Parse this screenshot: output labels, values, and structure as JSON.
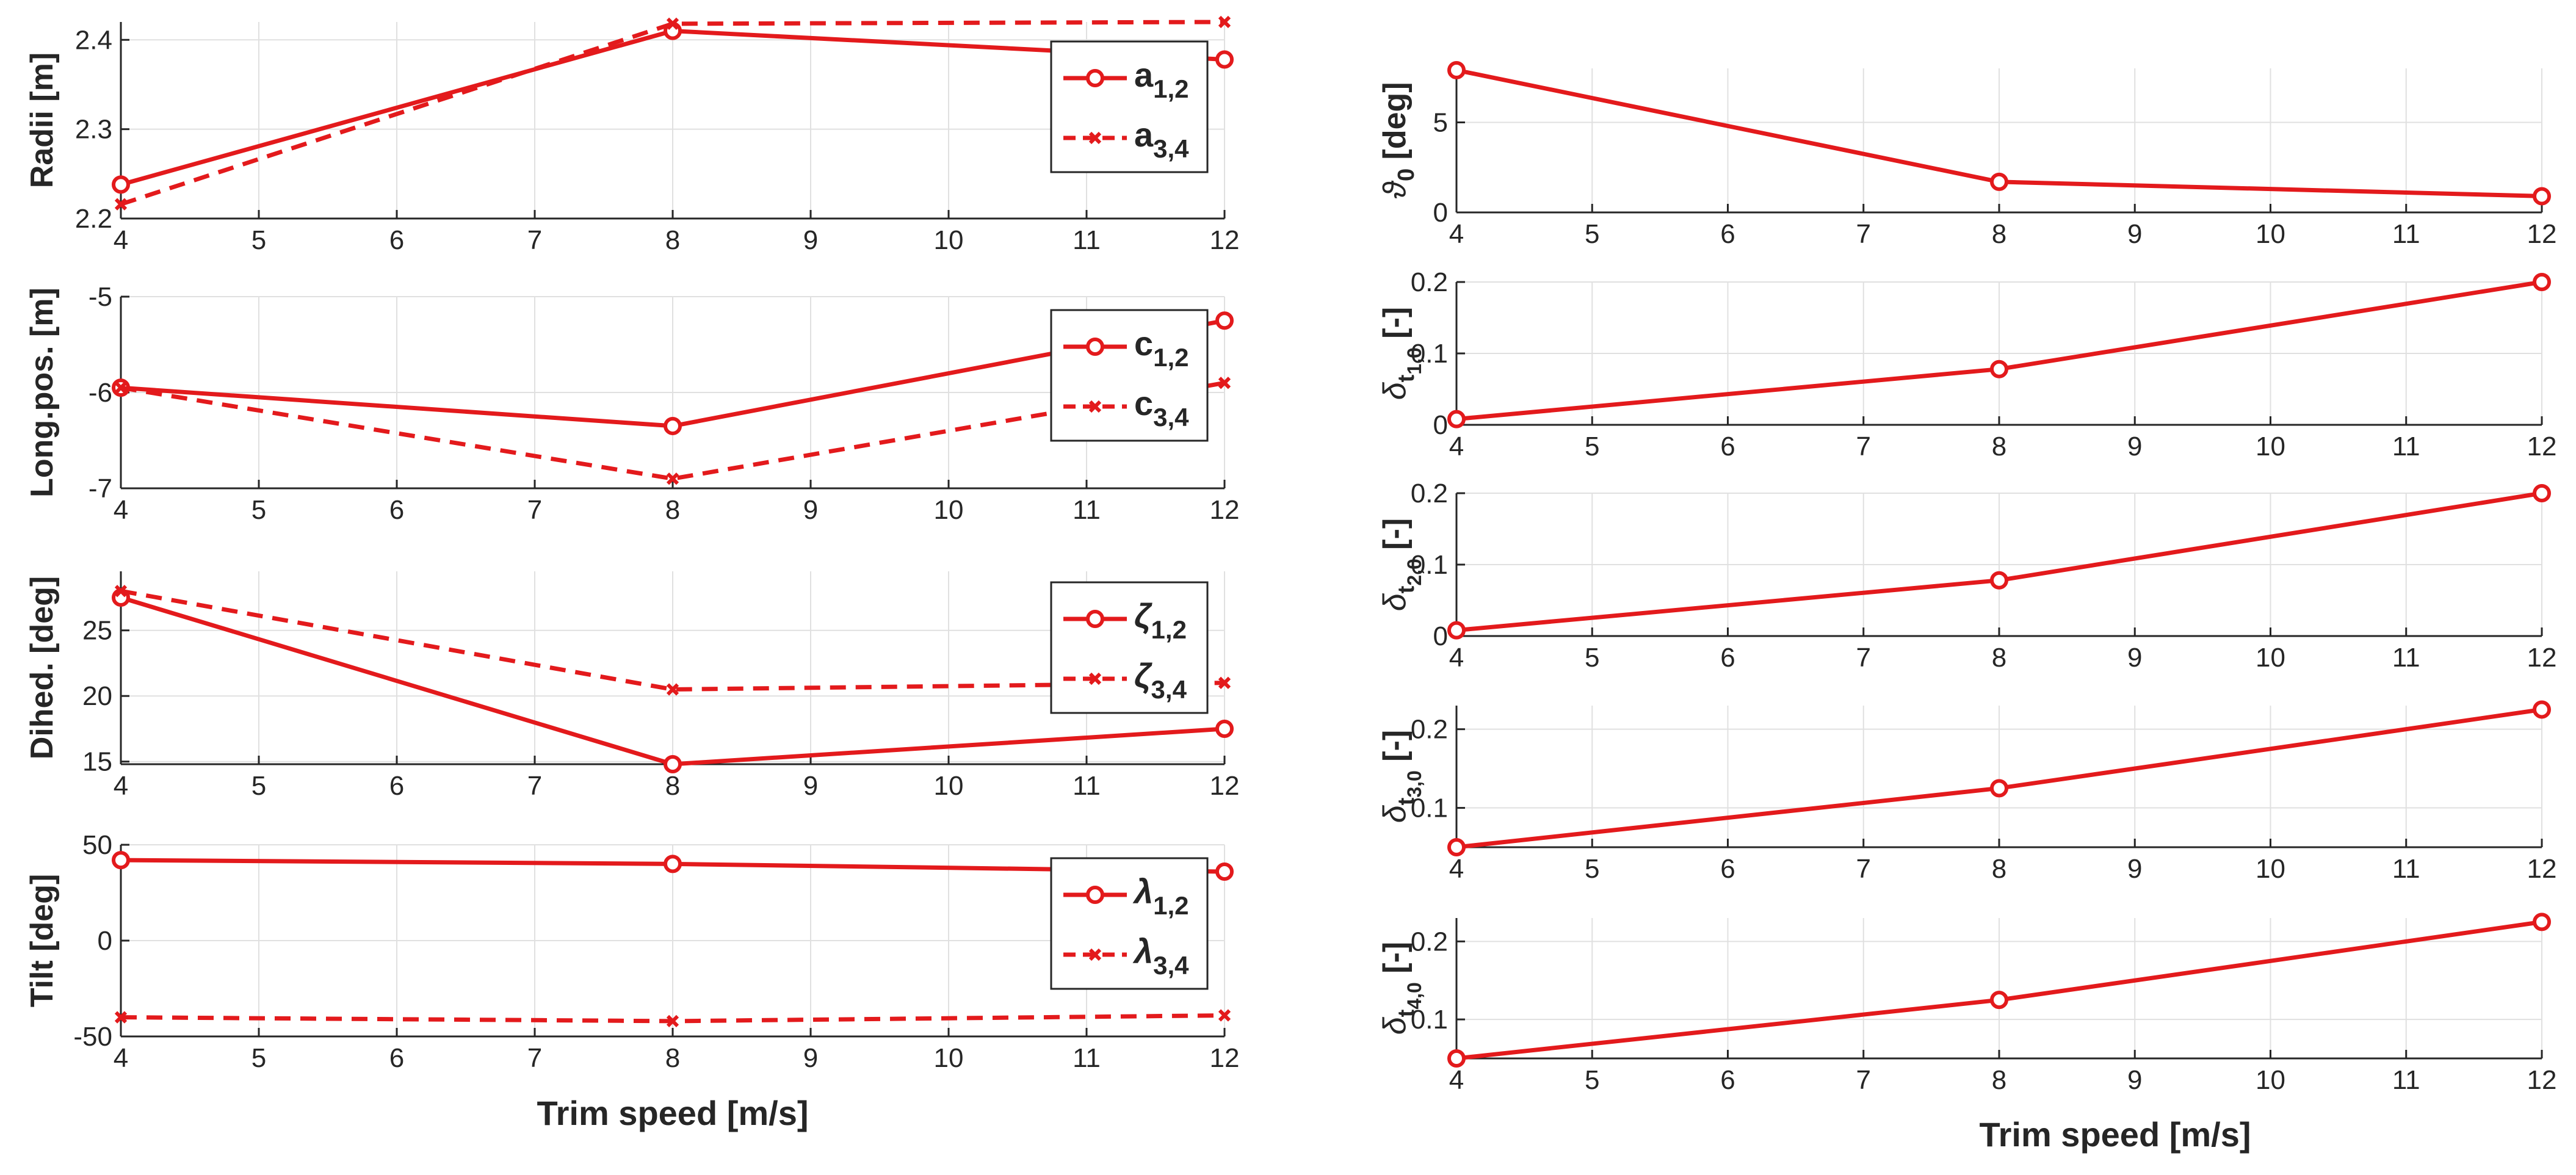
{
  "figure": {
    "left_xlabel": "Trim speed [m/s]",
    "right_xlabel": "Trim speed [m/s]"
  },
  "colors": {
    "series": "#e31a1c",
    "axis": "#262626",
    "grid": "#e0e0e0"
  },
  "chart_data": [
    {
      "id": "radii",
      "type": "line",
      "column": "left",
      "ylabel": "Radii [m]",
      "xlim": [
        4,
        12
      ],
      "ylim": [
        2.2,
        2.42
      ],
      "xticks": [
        4,
        5,
        6,
        7,
        8,
        9,
        10,
        11,
        12
      ],
      "yticks": [
        2.2,
        2.3,
        2.4
      ],
      "ytick_labels": [
        "2.2",
        "2.3",
        "2.4"
      ],
      "x": [
        4,
        8,
        12
      ],
      "series": [
        {
          "name": "a1,2",
          "sym": "a",
          "sub": "1,2",
          "values": [
            2.238,
            2.41,
            2.378
          ],
          "dash": false,
          "marker": "o"
        },
        {
          "name": "a3,4",
          "sym": "a",
          "sub": "3,4",
          "values": [
            2.216,
            2.418,
            2.42
          ],
          "dash": true,
          "marker": "x"
        }
      ]
    },
    {
      "id": "longpos",
      "type": "line",
      "column": "left",
      "ylabel": "Long.pos. [m]",
      "xlim": [
        4,
        12
      ],
      "ylim": [
        -7,
        -5
      ],
      "xticks": [
        4,
        5,
        6,
        7,
        8,
        9,
        10,
        11,
        12
      ],
      "yticks": [
        -7,
        -6,
        -5
      ],
      "ytick_labels": [
        "-7",
        "-6",
        "-5"
      ],
      "x": [
        4,
        8,
        12
      ],
      "series": [
        {
          "name": "c1,2",
          "sym": "c",
          "sub": "1,2",
          "values": [
            -5.95,
            -6.35,
            -5.25
          ],
          "dash": false,
          "marker": "o"
        },
        {
          "name": "c3,4",
          "sym": "c",
          "sub": "3,4",
          "values": [
            -5.95,
            -6.9,
            -5.9
          ],
          "dash": true,
          "marker": "x"
        }
      ]
    },
    {
      "id": "dihed",
      "type": "line",
      "column": "left",
      "ylabel": "Dihed. [deg]",
      "xlim": [
        4,
        12
      ],
      "ylim": [
        14.8,
        29.5
      ],
      "xticks": [
        4,
        5,
        6,
        7,
        8,
        9,
        10,
        11,
        12
      ],
      "yticks": [
        15,
        20,
        25
      ],
      "ytick_labels": [
        "15",
        "20",
        "25"
      ],
      "x": [
        4,
        8,
        12
      ],
      "series": [
        {
          "name": "ζ1,2",
          "sym": "ζ",
          "sub": "1,2",
          "values": [
            27.5,
            14.8,
            17.5
          ],
          "dash": false,
          "marker": "o"
        },
        {
          "name": "ζ3,4",
          "sym": "ζ",
          "sub": "3,4",
          "values": [
            28.0,
            20.5,
            21.0
          ],
          "dash": true,
          "marker": "x"
        }
      ]
    },
    {
      "id": "tilt",
      "type": "line",
      "column": "left",
      "ylabel": "Tilt [deg]",
      "xlim": [
        4,
        12
      ],
      "ylim": [
        -50,
        50
      ],
      "xticks": [
        4,
        5,
        6,
        7,
        8,
        9,
        10,
        11,
        12
      ],
      "yticks": [
        -50,
        0,
        50
      ],
      "ytick_labels": [
        "-50",
        "0",
        "50"
      ],
      "x": [
        4,
        8,
        12
      ],
      "series": [
        {
          "name": "λ1,2",
          "sym": "λ",
          "sub": "1,2",
          "values": [
            42,
            40,
            36
          ],
          "dash": false,
          "marker": "o"
        },
        {
          "name": "λ3,4",
          "sym": "λ",
          "sub": "3,4",
          "values": [
            -40,
            -42,
            -39
          ],
          "dash": true,
          "marker": "x"
        }
      ]
    },
    {
      "id": "theta0",
      "type": "line",
      "column": "right",
      "ylabel": "ϑ0 [deg]",
      "ylabel_sym": "ϑ",
      "ylabel_sub": "0",
      "ylabel_rest": " [deg]",
      "xlim": [
        4,
        12
      ],
      "ylim": [
        0,
        8
      ],
      "xticks": [
        4,
        5,
        6,
        7,
        8,
        9,
        10,
        11,
        12
      ],
      "yticks": [
        0,
        5
      ],
      "ytick_labels": [
        "0",
        "5"
      ],
      "x": [
        4,
        8,
        12
      ],
      "series": [
        {
          "name": "ϑ0",
          "values": [
            7.9,
            1.7,
            0.9
          ],
          "dash": false,
          "marker": "o"
        }
      ]
    },
    {
      "id": "dt10",
      "type": "line",
      "column": "right",
      "ylabel": "δt1,0 [-]",
      "ylabel_sym": "δ",
      "ylabel_sub": "t",
      "ylabel_sub2": "1,0",
      "ylabel_rest": "   [-]",
      "xlim": [
        4,
        12
      ],
      "ylim": [
        0,
        0.2
      ],
      "xticks": [
        4,
        5,
        6,
        7,
        8,
        9,
        10,
        11,
        12
      ],
      "yticks": [
        0,
        0.1,
        0.2
      ],
      "ytick_labels": [
        "0",
        "0.1",
        "0.2"
      ],
      "x": [
        4,
        8,
        12
      ],
      "series": [
        {
          "name": "δt1,0",
          "values": [
            0.008,
            0.078,
            0.2
          ],
          "dash": false,
          "marker": "o"
        }
      ]
    },
    {
      "id": "dt20",
      "type": "line",
      "column": "right",
      "ylabel": "δt2,0 [-]",
      "ylabel_sym": "δ",
      "ylabel_sub": "t",
      "ylabel_sub2": "2,0",
      "ylabel_rest": "   [-]",
      "xlim": [
        4,
        12
      ],
      "ylim": [
        0,
        0.2
      ],
      "xticks": [
        4,
        5,
        6,
        7,
        8,
        9,
        10,
        11,
        12
      ],
      "yticks": [
        0,
        0.1,
        0.2
      ],
      "ytick_labels": [
        "0",
        "0.1",
        "0.2"
      ],
      "x": [
        4,
        8,
        12
      ],
      "series": [
        {
          "name": "δt2,0",
          "values": [
            0.008,
            0.078,
            0.2
          ],
          "dash": false,
          "marker": "o"
        }
      ]
    },
    {
      "id": "dt30",
      "type": "line",
      "column": "right",
      "ylabel": "δt3,0 [-]",
      "ylabel_sym": "δ",
      "ylabel_sub": "t",
      "ylabel_sub2": "3,0",
      "ylabel_rest": "   [-]",
      "xlim": [
        4,
        12
      ],
      "ylim": [
        0.05,
        0.23
      ],
      "xticks": [
        4,
        5,
        6,
        7,
        8,
        9,
        10,
        11,
        12
      ],
      "yticks": [
        0.1,
        0.2
      ],
      "ytick_labels": [
        "0.1",
        "0.2"
      ],
      "x": [
        4,
        8,
        12
      ],
      "series": [
        {
          "name": "δt3,0",
          "values": [
            0.05,
            0.125,
            0.225
          ],
          "dash": false,
          "marker": "o"
        }
      ]
    },
    {
      "id": "dt40",
      "type": "line",
      "column": "right",
      "ylabel": "δt4,0 [-]",
      "ylabel_sym": "δ",
      "ylabel_sub": "t",
      "ylabel_sub2": "4,0",
      "ylabel_rest": "   [-]",
      "xlim": [
        4,
        12
      ],
      "ylim": [
        0.05,
        0.23
      ],
      "xticks": [
        4,
        5,
        6,
        7,
        8,
        9,
        10,
        11,
        12
      ],
      "yticks": [
        0.1,
        0.2
      ],
      "ytick_labels": [
        "0.1",
        "0.2"
      ],
      "x": [
        4,
        8,
        12
      ],
      "series": [
        {
          "name": "δt4,0",
          "values": [
            0.05,
            0.125,
            0.225
          ],
          "dash": false,
          "marker": "o"
        }
      ]
    }
  ]
}
